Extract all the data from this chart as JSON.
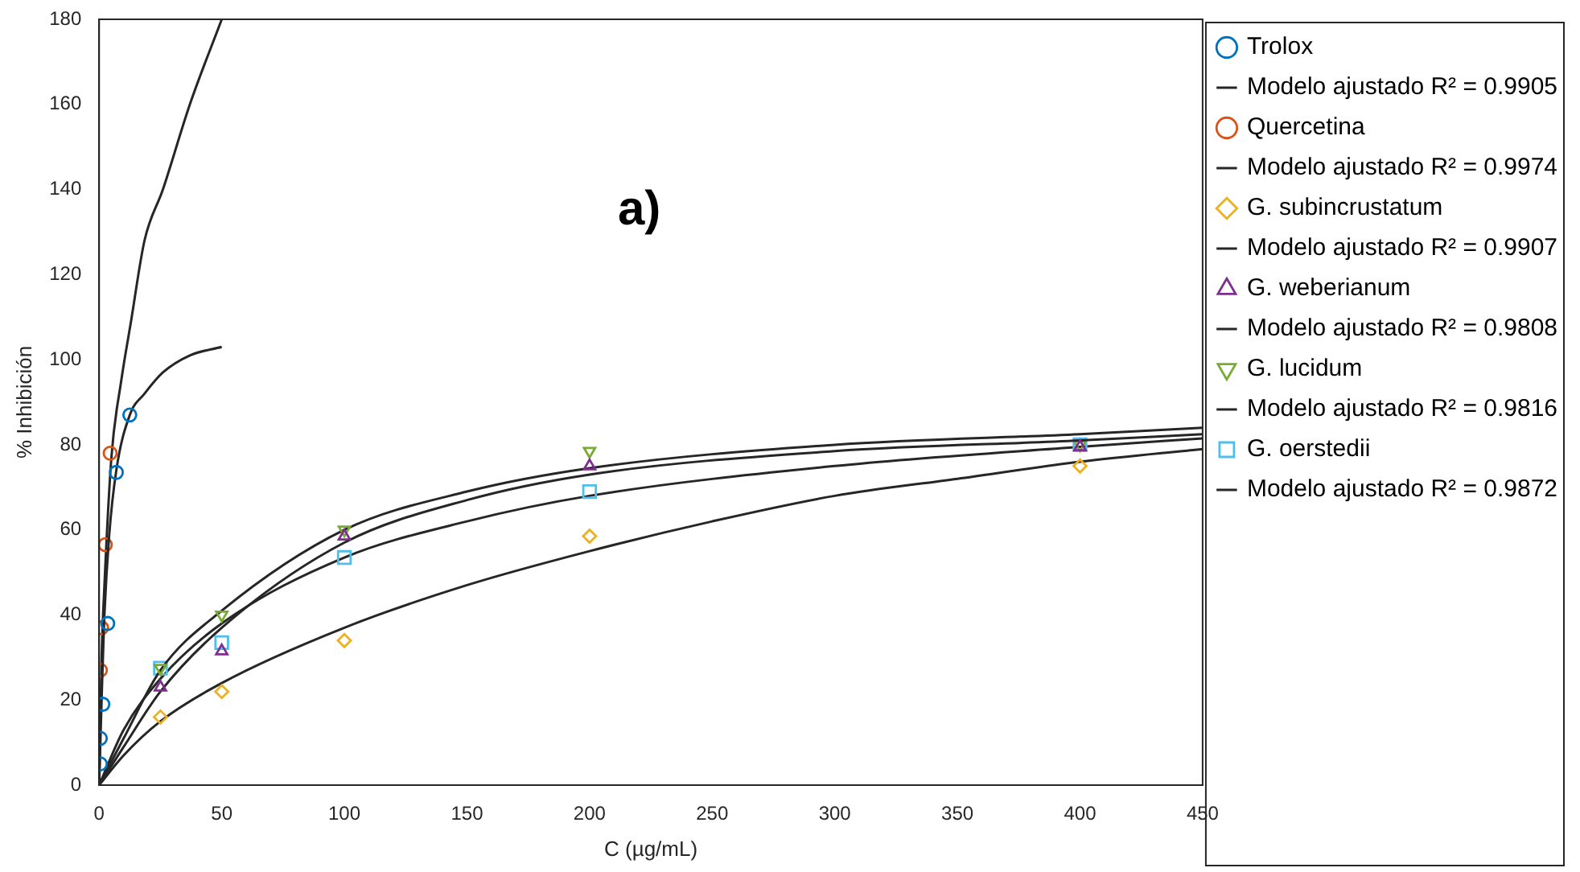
{
  "chart_data": {
    "type": "scatter",
    "xlabel": "C (µg/mL)",
    "ylabel": "% Inhibición",
    "annotations": [
      "a)"
    ],
    "xlim": [
      0,
      450
    ],
    "xticks": [
      0,
      50,
      100,
      150,
      200,
      250,
      300,
      350,
      400,
      450
    ],
    "ylim": [
      0,
      180
    ],
    "yticks": [
      0,
      20,
      40,
      60,
      80,
      100,
      120,
      140,
      160,
      180
    ],
    "grid": false,
    "legend": "right",
    "series": [
      {
        "name": "Trolox",
        "marker": "circle",
        "color": "#0072bd",
        "x": [
          0.5,
          0.5,
          1.5,
          3.5,
          7,
          12.5
        ],
        "values": [
          5,
          11,
          19,
          38,
          73.5,
          87
        ]
      },
      {
        "name": "Modelo ajustado R² = 0.9905",
        "type": "line",
        "marker": "none",
        "color": "#262626",
        "x": [
          0,
          1,
          2,
          4,
          7,
          12.5,
          18.5,
          26,
          37,
          50
        ],
        "values": [
          0,
          20,
          38,
          58,
          74,
          87,
          92,
          97,
          101,
          103
        ]
      },
      {
        "name": "Quercetina",
        "marker": "circle",
        "color": "#d95319",
        "x": [
          0.5,
          1,
          2.5,
          4.5
        ],
        "values": [
          27,
          37,
          56.5,
          78
        ]
      },
      {
        "name": "Modelo ajustado R² = 0.9974",
        "type": "line",
        "marker": "none",
        "color": "#262626",
        "x": [
          0,
          1,
          2,
          5,
          9,
          13,
          18.5,
          26,
          37,
          50
        ],
        "values": [
          0,
          30,
          45,
          77,
          95,
          109,
          128,
          140,
          160,
          180
        ]
      },
      {
        "name": "G. subincrustatum",
        "marker": "diamond",
        "color": "#edb120",
        "x": [
          25,
          50,
          100,
          200,
          400
        ],
        "values": [
          16,
          22,
          34,
          58.5,
          75
        ]
      },
      {
        "name": "Modelo ajustado R² = 0.9907",
        "type": "line",
        "marker": "none",
        "color": "#262626",
        "x": [
          0,
          10,
          25,
          50,
          100,
          150,
          200,
          250,
          300,
          350,
          400,
          450
        ],
        "values": [
          0,
          7,
          15,
          24,
          37,
          47,
          55,
          62,
          68,
          72,
          76,
          79
        ]
      },
      {
        "name": "G. weberianum",
        "marker": "triangle",
        "color": "#7e2f8e",
        "x": [
          25,
          50,
          100,
          200,
          400
        ],
        "values": [
          23,
          31.5,
          58.5,
          75,
          79.5
        ]
      },
      {
        "name": "Modelo ajustado R² = 0.9808",
        "type": "line",
        "marker": "none",
        "color": "#262626",
        "x": [
          0,
          10,
          25,
          50,
          100,
          150,
          200,
          300,
          400,
          450
        ],
        "values": [
          0,
          9,
          22,
          37,
          57,
          67,
          73,
          78.5,
          81,
          82.5
        ]
      },
      {
        "name": "G. lucidum",
        "marker": "triangle-down",
        "color": "#77ac30",
        "x": [
          25,
          50,
          100,
          200,
          400
        ],
        "values": [
          27.5,
          40,
          60,
          78.5,
          80
        ]
      },
      {
        "name": "Modelo ajustado R² = 0.9816",
        "type": "line",
        "marker": "none",
        "color": "#262626",
        "x": [
          0,
          10,
          25,
          50,
          100,
          150,
          200,
          300,
          400,
          450
        ],
        "values": [
          0,
          11,
          27,
          41,
          60,
          69,
          74.5,
          80,
          82.5,
          84
        ]
      },
      {
        "name": "G. oerstedii",
        "marker": "square",
        "color": "#4dbeee",
        "x": [
          25,
          50,
          100,
          200,
          400
        ],
        "values": [
          27.5,
          33.5,
          53.5,
          69,
          80
        ]
      },
      {
        "name": "Modelo ajustado R² = 0.9872",
        "type": "line",
        "marker": "none",
        "color": "#262626",
        "x": [
          0,
          10,
          25,
          50,
          100,
          150,
          200,
          300,
          400,
          450
        ],
        "values": [
          0,
          13,
          25,
          38,
          53.5,
          62,
          68,
          75,
          79.5,
          81.5
        ]
      }
    ]
  }
}
